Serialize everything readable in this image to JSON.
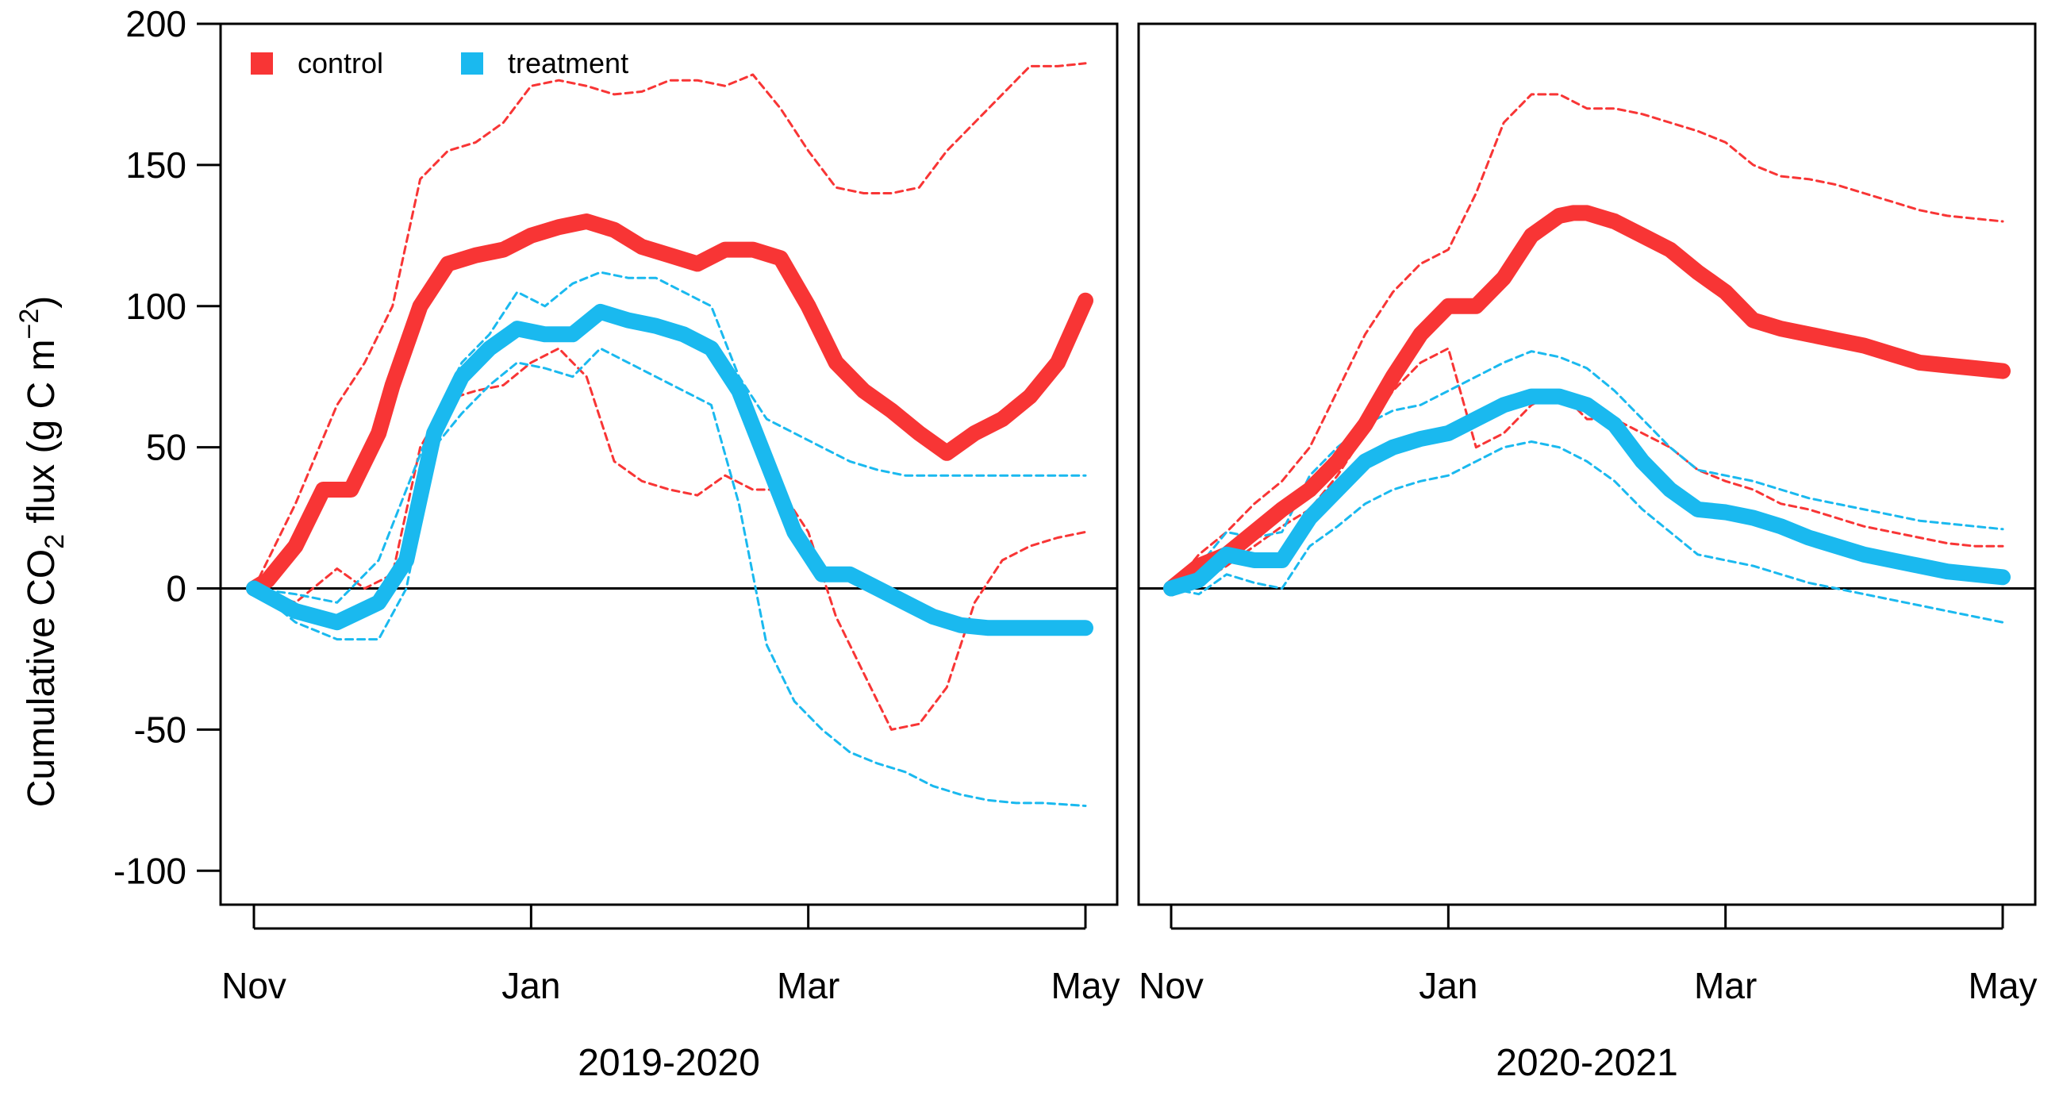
{
  "colors": {
    "control": "#f83535",
    "treatment": "#1ab9ef",
    "axis": "#000000"
  },
  "legend": [
    {
      "key": "control",
      "label": "control"
    },
    {
      "key": "treatment",
      "label": "treatment"
    }
  ],
  "yaxis": {
    "label_pre": "Cumulative CO",
    "label_sub": "2",
    "label_mid": " flux (g C m",
    "label_sup": "−2",
    "label_post": ")"
  },
  "chart_data": [
    {
      "type": "line",
      "panel_label": "2019-2020",
      "x_ticks": [
        "Nov",
        "Jan",
        "Mar",
        "May"
      ],
      "y_ticks": [
        200,
        150,
        100,
        50,
        0,
        -50,
        -100
      ],
      "ylim": [
        -112,
        200
      ],
      "x_months_range": [
        0,
        6
      ],
      "reference_line_y": 0,
      "series": [
        {
          "key": "control",
          "role": "mean",
          "x": [
            0,
            0.1,
            0.3,
            0.5,
            0.7,
            0.9,
            1.0,
            1.2,
            1.4,
            1.6,
            1.8,
            2.0,
            2.2,
            2.4,
            2.6,
            2.8,
            3.0,
            3.2,
            3.4,
            3.6,
            3.8,
            4.0,
            4.2,
            4.4,
            4.6,
            4.8,
            5.0,
            5.2,
            5.4,
            5.6,
            5.8,
            6.0
          ],
          "y": [
            0,
            3,
            15,
            35,
            35,
            55,
            72,
            100,
            115,
            118,
            120,
            125,
            128,
            130,
            127,
            121,
            118,
            115,
            120,
            120,
            117,
            100,
            80,
            70,
            63,
            55,
            48,
            55,
            60,
            68,
            80,
            102
          ]
        },
        {
          "key": "control",
          "role": "upper",
          "x": [
            0,
            0.3,
            0.6,
            0.8,
            1.0,
            1.2,
            1.4,
            1.6,
            1.8,
            2.0,
            2.2,
            2.4,
            2.6,
            2.8,
            3.0,
            3.2,
            3.4,
            3.6,
            3.8,
            4.0,
            4.2,
            4.4,
            4.6,
            4.8,
            5.0,
            5.2,
            5.4,
            5.6,
            5.8,
            6.0
          ],
          "y": [
            0,
            30,
            65,
            80,
            100,
            145,
            155,
            158,
            165,
            178,
            180,
            178,
            175,
            176,
            180,
            180,
            178,
            182,
            170,
            155,
            142,
            140,
            140,
            142,
            155,
            165,
            175,
            185,
            185,
            186
          ]
        },
        {
          "key": "control",
          "role": "lower",
          "x": [
            0,
            0.3,
            0.6,
            0.8,
            1.0,
            1.2,
            1.4,
            1.6,
            1.8,
            2.0,
            2.2,
            2.4,
            2.6,
            2.8,
            3.0,
            3.2,
            3.4,
            3.6,
            3.8,
            4.0,
            4.2,
            4.4,
            4.6,
            4.8,
            5.0,
            5.2,
            5.4,
            5.6,
            5.8,
            6.0
          ],
          "y": [
            0,
            -5,
            7,
            0,
            5,
            50,
            67,
            70,
            72,
            80,
            85,
            75,
            45,
            38,
            35,
            33,
            40,
            35,
            35,
            20,
            -10,
            -30,
            -50,
            -48,
            -35,
            -5,
            10,
            15,
            18,
            20
          ]
        },
        {
          "key": "treatment",
          "role": "mean",
          "x": [
            0,
            0.3,
            0.6,
            0.9,
            1.1,
            1.3,
            1.5,
            1.7,
            1.9,
            2.1,
            2.3,
            2.5,
            2.7,
            2.9,
            3.1,
            3.3,
            3.5,
            3.7,
            3.9,
            4.1,
            4.3,
            4.5,
            4.7,
            4.9,
            5.1,
            5.3,
            5.5,
            5.7,
            6.0
          ],
          "y": [
            0,
            -8,
            -12,
            -5,
            10,
            55,
            75,
            85,
            92,
            90,
            90,
            98,
            95,
            93,
            90,
            85,
            70,
            45,
            20,
            5,
            5,
            0,
            -5,
            -10,
            -13,
            -14,
            -14,
            -14,
            -14
          ]
        },
        {
          "key": "treatment",
          "role": "upper",
          "x": [
            0,
            0.3,
            0.6,
            0.9,
            1.1,
            1.3,
            1.5,
            1.7,
            1.9,
            2.1,
            2.3,
            2.5,
            2.7,
            2.9,
            3.1,
            3.3,
            3.5,
            3.7,
            3.9,
            4.1,
            4.3,
            4.5,
            4.7,
            4.9,
            5.1,
            5.3,
            5.5,
            5.7,
            6.0
          ],
          "y": [
            0,
            -2,
            -5,
            10,
            35,
            60,
            80,
            90,
            105,
            100,
            108,
            112,
            110,
            110,
            105,
            100,
            75,
            60,
            55,
            50,
            45,
            42,
            40,
            40,
            40,
            40,
            40,
            40,
            40
          ]
        },
        {
          "key": "treatment",
          "role": "lower",
          "x": [
            0,
            0.3,
            0.6,
            0.9,
            1.1,
            1.3,
            1.5,
            1.7,
            1.9,
            2.1,
            2.3,
            2.5,
            2.7,
            2.9,
            3.1,
            3.3,
            3.5,
            3.7,
            3.9,
            4.1,
            4.3,
            4.5,
            4.7,
            4.9,
            5.1,
            5.3,
            5.5,
            5.7,
            6.0
          ],
          "y": [
            0,
            -12,
            -18,
            -18,
            0,
            50,
            62,
            72,
            80,
            78,
            75,
            85,
            80,
            75,
            70,
            65,
            30,
            -20,
            -40,
            -50,
            -58,
            -62,
            -65,
            -70,
            -73,
            -75,
            -76,
            -76,
            -77
          ]
        }
      ]
    },
    {
      "type": "line",
      "panel_label": "2020-2021",
      "x_ticks": [
        "Nov",
        "Jan",
        "Mar",
        "May"
      ],
      "y_ticks": [
        200,
        150,
        100,
        50,
        0,
        -50,
        -100
      ],
      "ylim": [
        -112,
        200
      ],
      "x_months_range": [
        0,
        6
      ],
      "reference_line_y": 0,
      "series": [
        {
          "key": "control",
          "role": "mean",
          "x": [
            0,
            0.2,
            0.4,
            0.6,
            0.8,
            1.0,
            1.2,
            1.4,
            1.6,
            1.8,
            2.0,
            2.2,
            2.4,
            2.6,
            2.8,
            2.9,
            3.0,
            3.2,
            3.4,
            3.6,
            3.8,
            4.0,
            4.2,
            4.4,
            4.6,
            4.8,
            5.0,
            5.2,
            5.4,
            5.6,
            5.8,
            6.0
          ],
          "y": [
            0,
            8,
            12,
            20,
            28,
            35,
            45,
            58,
            75,
            90,
            100,
            100,
            110,
            125,
            132,
            133,
            133,
            130,
            125,
            120,
            112,
            105,
            95,
            92,
            90,
            88,
            86,
            83,
            80,
            79,
            78,
            77
          ]
        },
        {
          "key": "control",
          "role": "upper",
          "x": [
            0,
            0.2,
            0.4,
            0.6,
            0.8,
            1.0,
            1.2,
            1.4,
            1.6,
            1.8,
            2.0,
            2.2,
            2.4,
            2.6,
            2.8,
            3.0,
            3.2,
            3.4,
            3.6,
            3.8,
            4.0,
            4.2,
            4.4,
            4.6,
            4.8,
            5.0,
            5.2,
            5.4,
            5.6,
            5.8,
            6.0
          ],
          "y": [
            0,
            12,
            20,
            30,
            38,
            50,
            70,
            90,
            105,
            115,
            120,
            140,
            165,
            175,
            175,
            170,
            170,
            168,
            165,
            162,
            158,
            150,
            146,
            145,
            143,
            140,
            137,
            134,
            132,
            131,
            130
          ]
        },
        {
          "key": "control",
          "role": "lower",
          "x": [
            0,
            0.2,
            0.4,
            0.6,
            0.8,
            1.0,
            1.2,
            1.4,
            1.6,
            1.8,
            2.0,
            2.2,
            2.4,
            2.6,
            2.8,
            3.0,
            3.2,
            3.4,
            3.6,
            3.8,
            4.0,
            4.2,
            4.4,
            4.6,
            4.8,
            5.0,
            5.2,
            5.4,
            5.6,
            5.8,
            6.0
          ],
          "y": [
            0,
            2,
            8,
            15,
            22,
            28,
            40,
            55,
            70,
            80,
            85,
            50,
            55,
            65,
            70,
            60,
            60,
            55,
            50,
            42,
            38,
            35,
            30,
            28,
            25,
            22,
            20,
            18,
            16,
            15,
            15
          ]
        },
        {
          "key": "treatment",
          "role": "mean",
          "x": [
            0,
            0.2,
            0.4,
            0.6,
            0.8,
            1.0,
            1.2,
            1.4,
            1.6,
            1.8,
            2.0,
            2.2,
            2.4,
            2.6,
            2.8,
            3.0,
            3.2,
            3.4,
            3.6,
            3.8,
            4.0,
            4.2,
            4.4,
            4.6,
            4.8,
            5.0,
            5.2,
            5.4,
            5.6,
            5.8,
            6.0
          ],
          "y": [
            0,
            3,
            12,
            10,
            10,
            25,
            35,
            45,
            50,
            53,
            55,
            60,
            65,
            68,
            68,
            65,
            58,
            45,
            35,
            28,
            27,
            25,
            22,
            18,
            15,
            12,
            10,
            8,
            6,
            5,
            4
          ]
        },
        {
          "key": "treatment",
          "role": "upper",
          "x": [
            0,
            0.2,
            0.4,
            0.6,
            0.8,
            1.0,
            1.2,
            1.4,
            1.6,
            1.8,
            2.0,
            2.2,
            2.4,
            2.6,
            2.8,
            3.0,
            3.2,
            3.4,
            3.6,
            3.8,
            4.0,
            4.2,
            4.4,
            4.6,
            4.8,
            5.0,
            5.2,
            5.4,
            5.6,
            5.8,
            6.0
          ],
          "y": [
            0,
            8,
            20,
            18,
            20,
            40,
            50,
            58,
            63,
            65,
            70,
            75,
            80,
            84,
            82,
            78,
            70,
            60,
            50,
            42,
            40,
            38,
            35,
            32,
            30,
            28,
            26,
            24,
            23,
            22,
            21
          ]
        },
        {
          "key": "treatment",
          "role": "lower",
          "x": [
            0,
            0.2,
            0.4,
            0.6,
            0.8,
            1.0,
            1.2,
            1.4,
            1.6,
            1.8,
            2.0,
            2.2,
            2.4,
            2.6,
            2.8,
            3.0,
            3.2,
            3.4,
            3.6,
            3.8,
            4.0,
            4.2,
            4.4,
            4.6,
            4.8,
            5.0,
            5.2,
            5.4,
            5.6,
            5.8,
            6.0
          ],
          "y": [
            0,
            -2,
            5,
            2,
            0,
            15,
            22,
            30,
            35,
            38,
            40,
            45,
            50,
            52,
            50,
            45,
            38,
            28,
            20,
            12,
            10,
            8,
            5,
            2,
            0,
            -2,
            -4,
            -6,
            -8,
            -10,
            -12
          ]
        }
      ]
    }
  ]
}
